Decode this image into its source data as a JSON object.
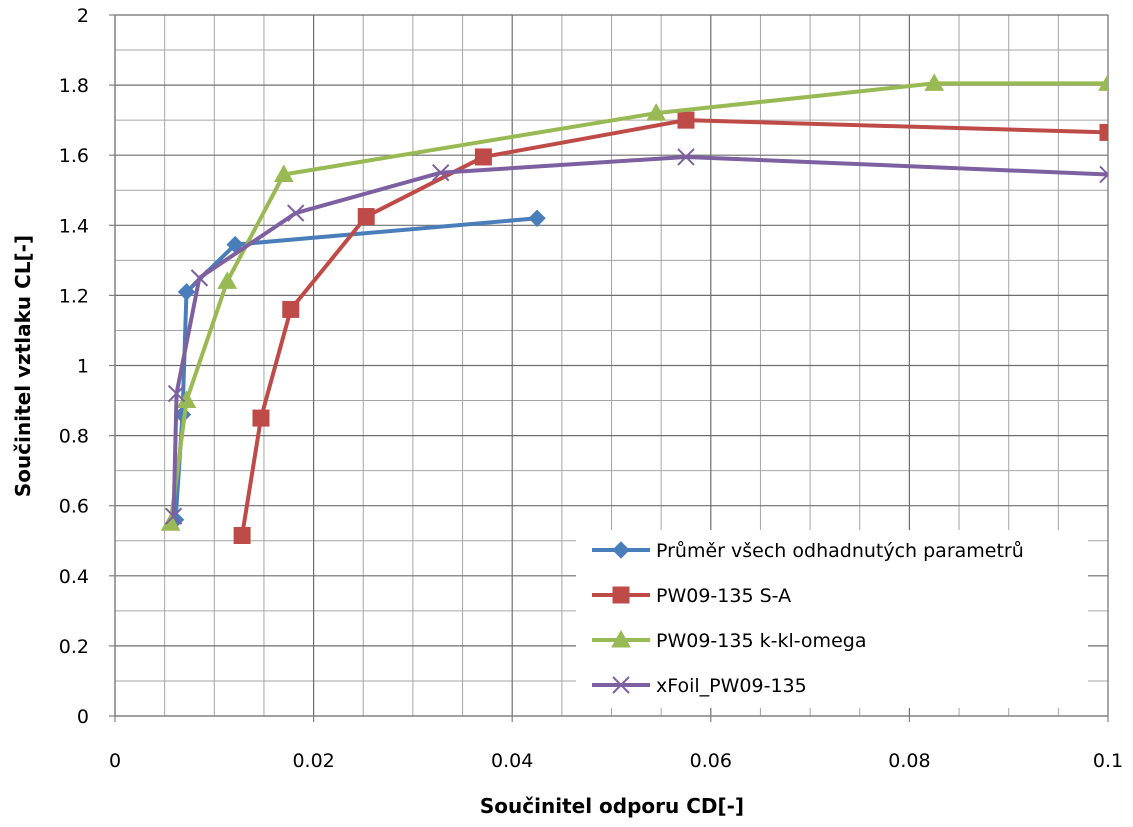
{
  "chart_data": {
    "type": "scatter",
    "title": "",
    "xlabel": "Součinitel odporu CD[-]",
    "ylabel": "Součinitel vztlaku CL[-]",
    "xlim": [
      0,
      0.1
    ],
    "ylim": [
      0,
      2
    ],
    "x_ticks": [
      "0",
      "0.02",
      "0.04",
      "0.06",
      "0.08",
      "0.1"
    ],
    "y_ticks": [
      "0",
      "0.2",
      "0.4",
      "0.6",
      "0.8",
      "1",
      "1.2",
      "1.4",
      "1.6",
      "1.8",
      "2"
    ],
    "grid": true,
    "legend_position": "bottom-right",
    "series": [
      {
        "name": "Průměr všech odhadnutých parametrů",
        "color": "#4a7ebb",
        "marker": "diamond",
        "points": [
          [
            0.0061,
            0.56
          ],
          [
            0.0068,
            0.86
          ],
          [
            0.0072,
            1.21
          ],
          [
            0.0121,
            1.345
          ],
          [
            0.0425,
            1.42
          ]
        ]
      },
      {
        "name": "PW09-135 S-A",
        "color": "#be4b48",
        "marker": "square",
        "points": [
          [
            0.0128,
            0.515
          ],
          [
            0.0147,
            0.85
          ],
          [
            0.0177,
            1.16
          ],
          [
            0.0253,
            1.425
          ],
          [
            0.0371,
            1.595
          ],
          [
            0.0575,
            1.7
          ],
          [
            0.1,
            1.665
          ]
        ]
      },
      {
        "name": "PW09-135 k-kl-omega",
        "color": "#98b954",
        "marker": "triangle",
        "points": [
          [
            0.0056,
            0.55
          ],
          [
            0.0072,
            0.9
          ],
          [
            0.0113,
            1.24
          ],
          [
            0.017,
            1.545
          ],
          [
            0.0545,
            1.72
          ],
          [
            0.0825,
            1.805
          ],
          [
            0.1,
            1.805
          ]
        ]
      },
      {
        "name": "xFoil_PW09-135",
        "color": "#7d60a0",
        "marker": "x",
        "points": [
          [
            0.0059,
            0.57
          ],
          [
            0.0062,
            0.92
          ],
          [
            0.0085,
            1.25
          ],
          [
            0.0182,
            1.435
          ],
          [
            0.0328,
            1.55
          ],
          [
            0.0575,
            1.595
          ],
          [
            0.1,
            1.545
          ]
        ]
      }
    ]
  }
}
